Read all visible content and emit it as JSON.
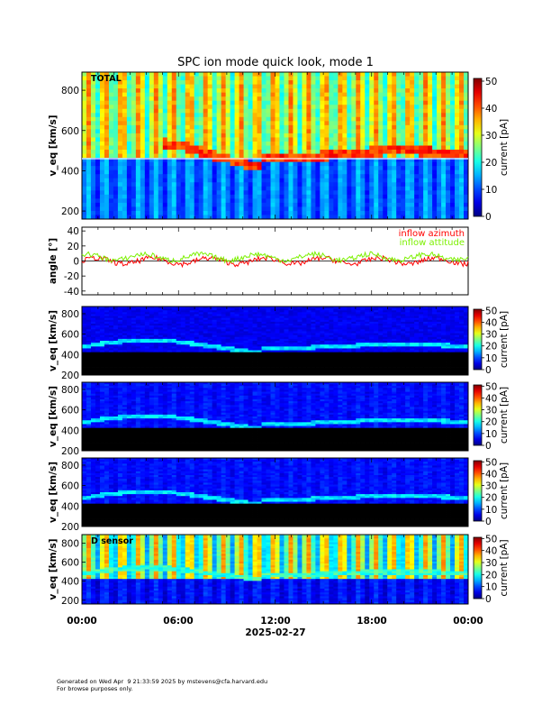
{
  "page": {
    "title": "SPC ion mode quick look, mode 1",
    "footer_line1": "Generated on Wed Apr  9 21:33:59 2025 by mstevens@cfa.harvard.edu",
    "footer_line2": "For browse purposes only."
  },
  "chart_data": [
    {
      "type": "heatmap",
      "panel_label": "TOTAL",
      "ylabel": "v_eq [km/s]",
      "ylim": [
        160,
        890
      ],
      "yticks": [
        200,
        400,
        600,
        800
      ],
      "colorbar": {
        "label": "current [pA]",
        "range": [
          0,
          51
        ],
        "ticks": [
          0,
          10,
          20,
          30,
          40,
          50
        ]
      },
      "reference_line_y": 460,
      "peak_band_y": 480
    },
    {
      "type": "line",
      "ylabel": "angle [°]",
      "ylim": [
        -45,
        45
      ],
      "yticks": [
        -40,
        -20,
        0,
        20,
        40
      ],
      "series": [
        {
          "name": "inflow azimuth",
          "color": "#ff0000",
          "mean": 0
        },
        {
          "name": "inflow attitude",
          "color": "#7cf000",
          "mean": 5
        }
      ]
    },
    {
      "type": "heatmap",
      "panel_label": "",
      "ylabel": "v_eq [km/s]",
      "ylim": [
        200,
        870
      ],
      "yticks": [
        200,
        400,
        600,
        800
      ],
      "colorbar": {
        "label": "current [pA]",
        "range": [
          0,
          51
        ],
        "ticks": [
          0,
          10,
          20,
          30,
          40,
          50
        ]
      },
      "peak_band_y": 480
    },
    {
      "type": "heatmap",
      "panel_label": "",
      "ylabel": "v_eq [km/s]",
      "ylim": [
        200,
        870
      ],
      "yticks": [
        200,
        400,
        600,
        800
      ],
      "colorbar": {
        "label": "current [pA]",
        "range": [
          0,
          51
        ],
        "ticks": [
          0,
          10,
          20,
          30,
          40,
          50
        ]
      },
      "peak_band_y": 480
    },
    {
      "type": "heatmap",
      "panel_label": "",
      "ylabel": "v_eq [km/s]",
      "ylim": [
        200,
        870
      ],
      "yticks": [
        200,
        400,
        600,
        800
      ],
      "colorbar": {
        "label": "current [pA]",
        "range": [
          0,
          51
        ],
        "ticks": [
          0,
          10,
          20,
          30,
          40,
          50
        ]
      },
      "peak_band_y": 480
    },
    {
      "type": "heatmap",
      "panel_label": "D sensor",
      "ylabel": "v_eq [km/s]",
      "ylim": [
        160,
        890
      ],
      "yticks": [
        200,
        400,
        600,
        800
      ],
      "colorbar": {
        "label": "current [pA]",
        "range": [
          0,
          51
        ],
        "ticks": [
          0,
          10,
          20,
          30,
          40,
          50
        ]
      },
      "peak_band_y": 480
    }
  ],
  "x_axis": {
    "tick_labels": [
      "00:00",
      "06:00",
      "12:00",
      "18:00",
      "00:00"
    ],
    "date_label": "2025-02-27"
  }
}
